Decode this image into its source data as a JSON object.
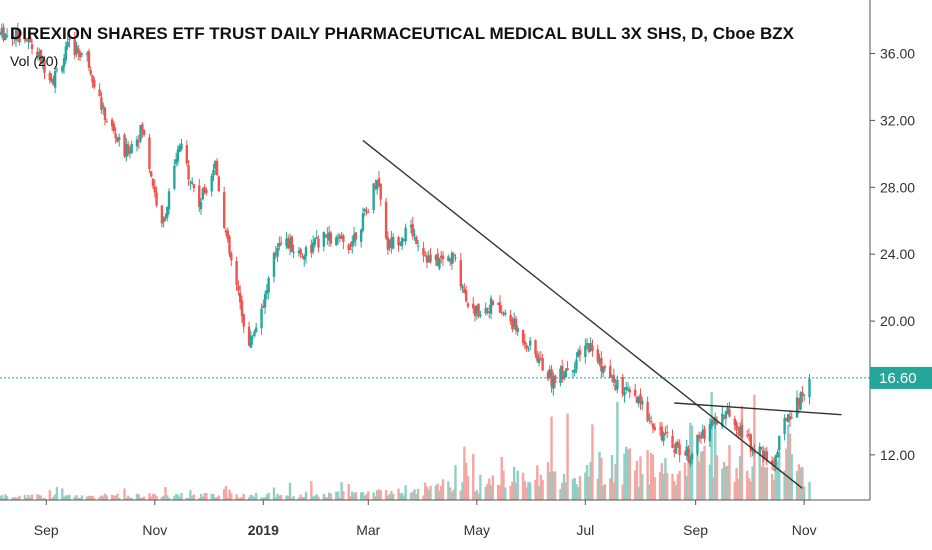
{
  "chart_data": {
    "type": "candlestick",
    "title": "DIREXION SHARES ETF TRUST DAILY PHARMACEUTICAL MEDICAL BULL 3X SHS, D, Cboe BZX",
    "indicator_label": "Vol (20)",
    "y_ticks": [
      "36.00",
      "32.00",
      "28.00",
      "24.00",
      "20.00",
      "12.00"
    ],
    "y_tick_values": [
      36,
      32,
      28,
      24,
      20,
      12
    ],
    "ylim": [
      9.3,
      39.2
    ],
    "x_ticks": [
      "Sep",
      "Nov",
      "2019",
      "Mar",
      "May",
      "Jul",
      "Sep",
      "Nov"
    ],
    "x_tick_dates": [
      "2018-09-01",
      "2018-11-01",
      "2019-01-01",
      "2019-03-01",
      "2019-05-01",
      "2019-07-01",
      "2019-09-01",
      "2019-11-01"
    ],
    "xlim": [
      "2018-08-06",
      "2019-12-08"
    ],
    "last_price": "16.60",
    "last_value": 16.6,
    "grid": "off",
    "colors": {
      "up": "#26a69a",
      "down": "#ef5350",
      "up_volume": "#8fd0c6",
      "down_volume": "#f4a6a3",
      "trendline": "#333333",
      "last_price_line": "#26a69a",
      "axis_text": "#333333"
    },
    "price_anchors": [
      [
        "2018-08-06",
        37.2
      ],
      [
        "2018-08-20",
        37.0
      ],
      [
        "2018-09-05",
        34.5
      ],
      [
        "2018-09-14",
        36.5
      ],
      [
        "2018-09-24",
        35.8
      ],
      [
        "2018-10-03",
        32.5
      ],
      [
        "2018-10-15",
        30.0
      ],
      [
        "2018-10-25",
        31.5
      ],
      [
        "2018-11-05",
        25.5
      ],
      [
        "2018-11-15",
        30.5
      ],
      [
        "2018-11-26",
        27.0
      ],
      [
        "2018-12-05",
        29.5
      ],
      [
        "2018-12-12",
        24.5
      ],
      [
        "2018-12-24",
        18.5
      ],
      [
        "2019-01-02",
        21.5
      ],
      [
        "2019-01-10",
        25.0
      ],
      [
        "2019-01-22",
        24.0
      ],
      [
        "2019-02-05",
        25.0
      ],
      [
        "2019-02-18",
        24.5
      ],
      [
        "2019-02-28",
        26.5
      ],
      [
        "2019-03-06",
        28.7
      ],
      [
        "2019-03-12",
        24.5
      ],
      [
        "2019-03-25",
        25.5
      ],
      [
        "2019-04-05",
        23.5
      ],
      [
        "2019-04-18",
        23.8
      ],
      [
        "2019-04-28",
        20.5
      ],
      [
        "2019-05-10",
        21.0
      ],
      [
        "2019-05-20",
        20.0
      ],
      [
        "2019-06-03",
        18.0
      ],
      [
        "2019-06-12",
        16.5
      ],
      [
        "2019-06-25",
        17.5
      ],
      [
        "2019-07-03",
        18.6
      ],
      [
        "2019-07-15",
        16.5
      ],
      [
        "2019-08-01",
        15.0
      ],
      [
        "2019-08-15",
        13.0
      ],
      [
        "2019-08-28",
        12.0
      ],
      [
        "2019-09-10",
        14.0
      ],
      [
        "2019-09-20",
        14.5
      ],
      [
        "2019-10-03",
        12.5
      ],
      [
        "2019-10-15",
        11.5
      ],
      [
        "2019-10-22",
        14.3
      ],
      [
        "2019-10-28",
        15.0
      ],
      [
        "2019-11-04",
        16.6
      ]
    ],
    "volume_anchors": [
      [
        "2018-09-01",
        0.04
      ],
      [
        "2018-11-01",
        0.05
      ],
      [
        "2019-01-01",
        0.05
      ],
      [
        "2019-03-01",
        0.07
      ],
      [
        "2019-05-01",
        0.18
      ],
      [
        "2019-06-10",
        0.28
      ],
      [
        "2019-07-01",
        0.3
      ],
      [
        "2019-07-20",
        0.4
      ],
      [
        "2019-08-20",
        0.3
      ],
      [
        "2019-09-15",
        0.45
      ],
      [
        "2019-10-10",
        0.35
      ],
      [
        "2019-10-22",
        0.55
      ],
      [
        "2019-11-04",
        0.25
      ]
    ],
    "trendlines": [
      {
        "from": [
          "2019-02-26",
          30.8
        ],
        "to": [
          "2019-10-31",
          10.0
        ]
      },
      {
        "from": [
          "2019-08-20",
          15.1
        ],
        "to": [
          "2019-11-22",
          14.4
        ]
      }
    ]
  }
}
